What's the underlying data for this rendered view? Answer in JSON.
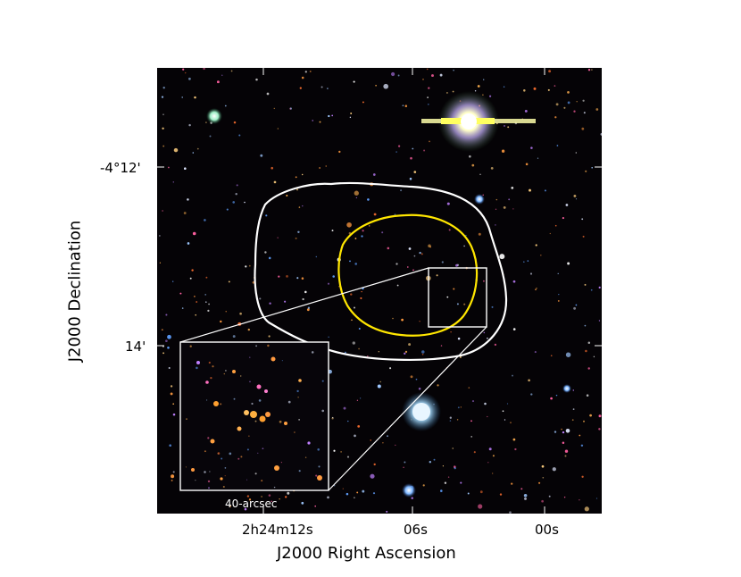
{
  "figure": {
    "x_axis_title": "J2000 Right Ascension",
    "y_axis_title": "J2000 Declination",
    "x_tick_labels": [
      "2h24m12s",
      "06s",
      "00s"
    ],
    "y_tick_labels": [
      "-4°12'",
      "14'"
    ],
    "inset_caption": "40-arcsec",
    "colors": {
      "outer_contour": "#ffffff",
      "inner_contour": "#ffe600",
      "zoom_box": "#ffffff",
      "background": "#050306"
    },
    "bright_objects": [
      {
        "name": "saturated-star-top-right",
        "color": "#ffffaa"
      },
      {
        "name": "blue-galaxy-bottom",
        "color": "#9fd4ff"
      }
    ]
  }
}
